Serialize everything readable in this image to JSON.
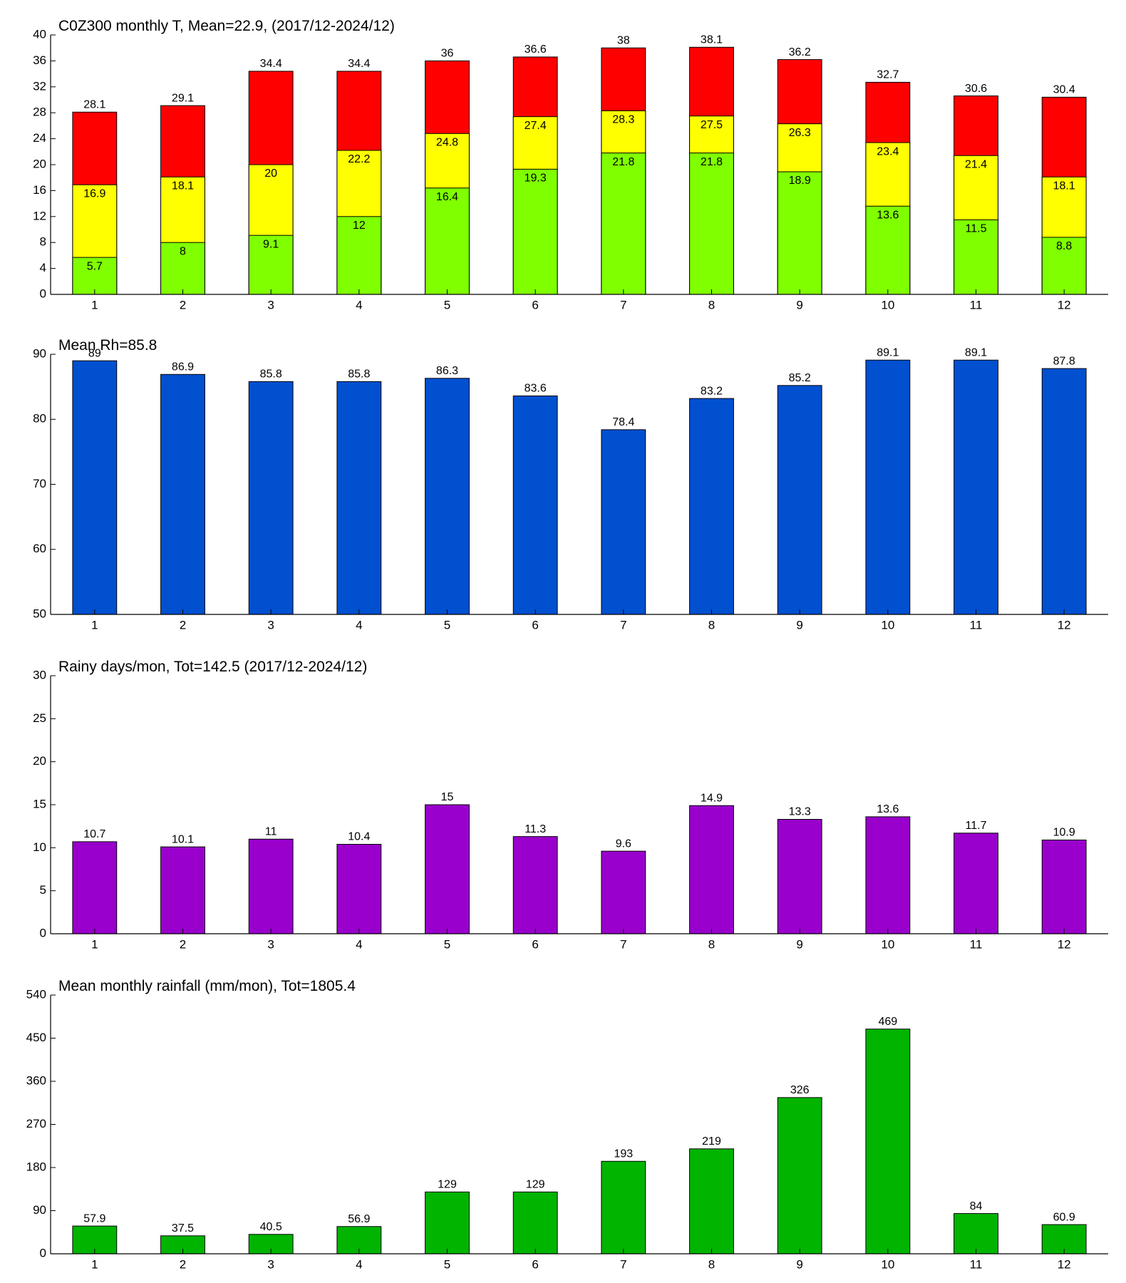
{
  "chart_data": [
    {
      "type": "bar",
      "overlap": true,
      "title": "C0Z300 monthly T, Mean=22.9, (2017/12-2024/12)",
      "categories": [
        "1",
        "2",
        "3",
        "4",
        "5",
        "6",
        "7",
        "8",
        "9",
        "10",
        "11",
        "12"
      ],
      "series": [
        {
          "color": "#ff0000",
          "values": [
            28.1,
            29.1,
            34.4,
            34.4,
            36,
            36.6,
            38,
            38.1,
            36.2,
            32.7,
            30.6,
            30.4
          ]
        },
        {
          "color": "#ffff00",
          "values": [
            16.9,
            18.1,
            20,
            22.2,
            24.8,
            27.4,
            28.3,
            27.5,
            26.3,
            23.4,
            21.4,
            18.1
          ]
        },
        {
          "color": "#80ff00",
          "values": [
            5.7,
            8,
            9.1,
            12,
            16.4,
            19.3,
            21.8,
            21.8,
            18.9,
            13.6,
            11.5,
            8.8
          ]
        }
      ],
      "ylim": [
        0,
        40
      ],
      "yticks": [
        0,
        4,
        8,
        12,
        16,
        20,
        24,
        28,
        32,
        36,
        40
      ]
    },
    {
      "type": "bar",
      "title": "Mean Rh=85.8",
      "categories": [
        "1",
        "2",
        "3",
        "4",
        "5",
        "6",
        "7",
        "8",
        "9",
        "10",
        "11",
        "12"
      ],
      "series": [
        {
          "color": "#0050d0",
          "values": [
            89,
            86.9,
            85.8,
            85.8,
            86.3,
            83.6,
            78.4,
            83.2,
            85.2,
            89.1,
            89.1,
            87.8
          ]
        }
      ],
      "ylim": [
        50,
        90
      ],
      "yticks": [
        50,
        60,
        70,
        80,
        90
      ]
    },
    {
      "type": "bar",
      "title": "Rainy days/mon, Tot=142.5 (2017/12-2024/12)",
      "categories": [
        "1",
        "2",
        "3",
        "4",
        "5",
        "6",
        "7",
        "8",
        "9",
        "10",
        "11",
        "12"
      ],
      "series": [
        {
          "color": "#9900cc",
          "values": [
            10.7,
            10.1,
            11,
            10.4,
            15,
            11.3,
            9.6,
            14.9,
            13.3,
            13.6,
            11.7,
            10.9
          ]
        }
      ],
      "ylim": [
        0,
        30
      ],
      "yticks": [
        0,
        5,
        10,
        15,
        20,
        25,
        30
      ]
    },
    {
      "type": "bar",
      "title": "Mean monthly rainfall (mm/mon), Tot=1805.4",
      "categories": [
        "1",
        "2",
        "3",
        "4",
        "5",
        "6",
        "7",
        "8",
        "9",
        "10",
        "11",
        "12"
      ],
      "series": [
        {
          "color": "#00b400",
          "values": [
            57.9,
            37.5,
            40.5,
            56.9,
            129,
            129,
            193,
            219,
            326,
            469,
            84,
            60.9
          ]
        }
      ],
      "ylim": [
        0,
        540
      ],
      "yticks": [
        0,
        90,
        180,
        270,
        360,
        450,
        540
      ]
    }
  ]
}
